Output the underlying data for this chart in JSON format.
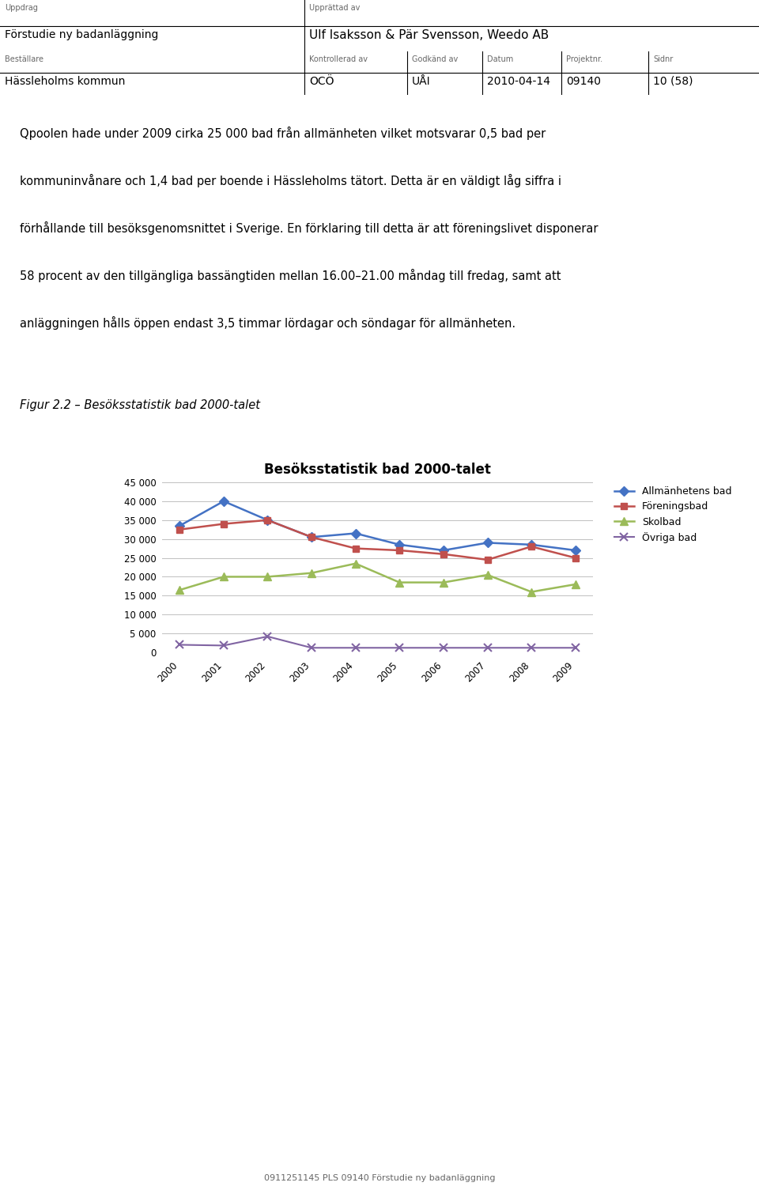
{
  "years": [
    2000,
    2001,
    2002,
    2003,
    2004,
    2005,
    2006,
    2007,
    2008,
    2009
  ],
  "allmanhetens_bad": [
    33500,
    40000,
    35000,
    30500,
    31500,
    28500,
    27000,
    29000,
    28500,
    27000
  ],
  "foreningsbad": [
    32500,
    34000,
    35000,
    30500,
    27500,
    27000,
    26000,
    24500,
    28000,
    25000
  ],
  "skolbad": [
    16500,
    20000,
    20000,
    21000,
    23500,
    18500,
    18500,
    20500,
    16000,
    18000
  ],
  "ovriga_bad": [
    2000,
    1800,
    4200,
    1200,
    1200,
    1200,
    1200,
    1200,
    1200,
    1200
  ],
  "color_allmanheten": "#4472C4",
  "color_forening": "#C0504D",
  "color_skolbad": "#9BBB59",
  "color_ovriga": "#8064A2",
  "chart_title": "Besöksstatistik bad 2000-talet",
  "legend_allmanheten": "Allmänhetens bad",
  "legend_forening": "Föreningsbad",
  "legend_skolbad": "Skolbad",
  "legend_ovriga": "Övriga bad",
  "ylim_min": 0,
  "ylim_max": 45000,
  "yticks": [
    0,
    5000,
    10000,
    15000,
    20000,
    25000,
    30000,
    35000,
    40000,
    45000
  ],
  "header_uppdrag_label": "Uppdrag",
  "header_uppdrag_value": "Förstudie ny badanläggning",
  "header_upprattat_label": "Upprättad av",
  "header_upprattat_value": "Ulf Isaksson & Pär Svensson, Weedo AB",
  "header_bestallare_label": "Beställare",
  "header_bestallare_value": "Hässleholms kommun",
  "header_kontrollerad_label": "Kontrollerad av",
  "header_kontrollerad_value": "OCÖ",
  "header_godkand_label": "Godkänd av",
  "header_godkand_value": "UÅI",
  "header_datum_label": "Datum",
  "header_datum_value": "2010-04-14",
  "header_projektnr_label": "Projektnr.",
  "header_projektnr_value": "09140",
  "header_sidnr_label": "Sidnr",
  "header_sidnr_value": "10 (58)",
  "body_lines": [
    "Qpoolen hade under 2009 cirka 25 000 bad från allmänheten vilket motsvarar 0,5 bad per",
    "kommuninvånare och 1,4 bad per boende i Hässleholms tätort. Detta är en väldigt låg siffra i",
    "förhållande till besöksgenomsnittet i Sverige. En förklaring till detta är att föreningslivet disponerar",
    "58 procent av den tillgängliga bassängtiden mellan 16.00–21.00 måndag till fredag, samt att",
    "anläggningen hålls öppen endast 3,5 timmar lördagar och söndagar för allmänheten."
  ],
  "figure_caption": "Figur 2.2 – Besöksstatistik bad 2000-talet",
  "footer_text": "0911251145 PLS 09140 Förstudie ny badanläggning",
  "bg_color": "#ffffff",
  "chart_bg": "#ffffff",
  "grid_color": "#c0c0c0"
}
